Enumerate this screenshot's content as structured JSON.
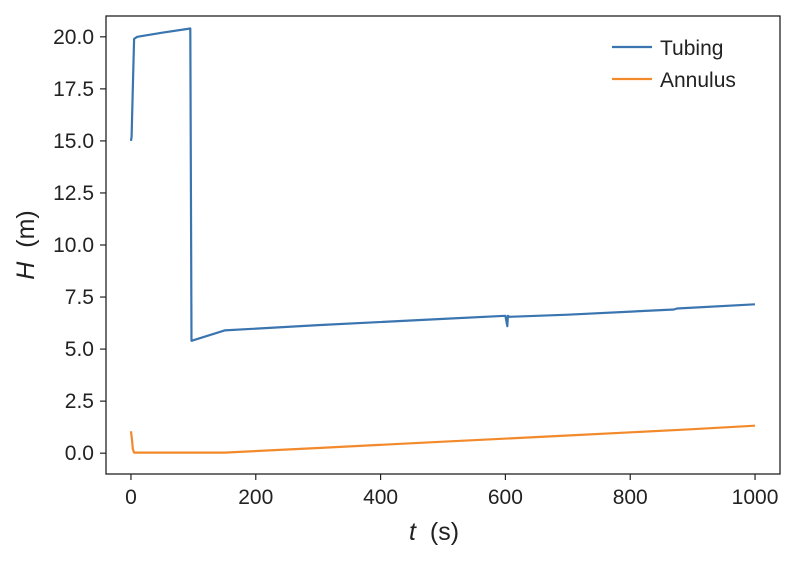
{
  "chart_data": {
    "type": "line",
    "xlabel_var": "t",
    "xlabel_unit": "(s)",
    "ylabel_var": "H",
    "ylabel_unit": "(m)",
    "xlim": [
      -40,
      1040
    ],
    "ylim": [
      -1.0,
      21.0
    ],
    "xticks": [
      0,
      200,
      400,
      600,
      800,
      1000
    ],
    "yticks": [
      0.0,
      2.5,
      5.0,
      7.5,
      10.0,
      12.5,
      15.0,
      17.5,
      20.0
    ],
    "xtick_labels": [
      "0",
      "200",
      "400",
      "600",
      "800",
      "1000"
    ],
    "ytick_labels": [
      "0.0",
      "2.5",
      "5.0",
      "7.5",
      "10.0",
      "12.5",
      "15.0",
      "17.5",
      "20.0"
    ],
    "grid": false,
    "legend_position": "top-right",
    "series": [
      {
        "name": "Tubing",
        "color": "#3a75b0",
        "x": [
          0,
          1,
          3,
          5,
          10,
          50,
          95,
          97,
          150,
          300,
          500,
          600,
          603,
          604,
          606,
          700,
          870,
          875,
          1000
        ],
        "y": [
          15.0,
          15.2,
          17.5,
          19.9,
          20.0,
          20.2,
          20.4,
          5.4,
          5.9,
          6.15,
          6.45,
          6.6,
          6.1,
          6.6,
          6.55,
          6.65,
          6.9,
          6.95,
          7.15
        ]
      },
      {
        "name": "Annulus",
        "color": "#f28a2c",
        "x": [
          0,
          2,
          3,
          5,
          50,
          100,
          150,
          300,
          500,
          700,
          900,
          1000
        ],
        "y": [
          1.05,
          0.55,
          0.2,
          0.03,
          0.03,
          0.03,
          0.03,
          0.25,
          0.55,
          0.85,
          1.15,
          1.32
        ]
      }
    ]
  }
}
